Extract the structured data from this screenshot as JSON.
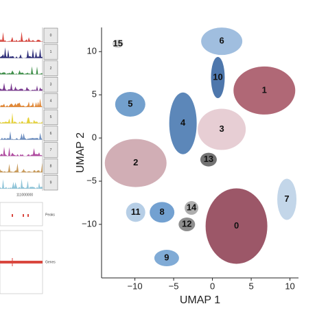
{
  "tracks": {
    "labels": [
      "0",
      "1",
      "2",
      "3",
      "4",
      "5",
      "6",
      "7",
      "8",
      "9"
    ],
    "colors": [
      "#d9473f",
      "#2c2c78",
      "#3f8f4a",
      "#7a3a8f",
      "#e0893a",
      "#e6d23a",
      "#6e8fc0",
      "#b04aa0",
      "#c89a5a",
      "#8fc4d8"
    ],
    "coordinate": "111000000",
    "peaks_label": "Peaks",
    "genes_label": "Genes"
  },
  "chart_data": {
    "type": "scatter",
    "xlabel": "UMAP 1",
    "ylabel": "UMAP 2",
    "xlim": [
      -14.3,
      11.1
    ],
    "ylim": [
      -16.2,
      12.8
    ],
    "xticks": [
      {
        "value": -10,
        "label": "−10"
      },
      {
        "value": -5,
        "label": "−5"
      },
      0,
      5,
      10
    ],
    "yticks": [
      {
        "value": -10,
        "label": "−10"
      },
      {
        "value": -5,
        "label": "−5"
      },
      0,
      5,
      10
    ],
    "series": [
      {
        "name": "0",
        "color": "#8b3a4e",
        "x": [
          3.1
        ],
        "y": [
          -10.2
        ]
      },
      {
        "name": "1",
        "color": "#a24d5e",
        "x": [
          6.7
        ],
        "y": [
          5.5
        ]
      },
      {
        "name": "2",
        "color": "#c9a0a8",
        "x": [
          -9.9
        ],
        "y": [
          -2.9
        ]
      },
      {
        "name": "3",
        "color": "#e3c6cc",
        "x": [
          1.2
        ],
        "y": [
          1.0
        ]
      },
      {
        "name": "4",
        "color": "#3f72ad",
        "x": [
          -3.8
        ],
        "y": [
          1.7
        ]
      },
      {
        "name": "5",
        "color": "#5b8fc4",
        "x": [
          -10.6
        ],
        "y": [
          3.9
        ]
      },
      {
        "name": "6",
        "color": "#8fb3d9",
        "x": [
          1.2
        ],
        "y": [
          11.2
        ]
      },
      {
        "name": "7",
        "color": "#b8cfe5",
        "x": [
          9.6
        ],
        "y": [
          -7.1
        ]
      },
      {
        "name": "8",
        "color": "#5b90c9",
        "x": [
          -6.5
        ],
        "y": [
          -8.6
        ]
      },
      {
        "name": "9",
        "color": "#6a9ccf",
        "x": [
          -5.9
        ],
        "y": [
          -13.9
        ]
      },
      {
        "name": "10",
        "color": "#2f5f9e",
        "x": [
          0.7
        ],
        "y": [
          7.0
        ]
      },
      {
        "name": "11",
        "color": "#a9c6e2",
        "x": [
          -9.9
        ],
        "y": [
          -8.6
        ]
      },
      {
        "name": "12",
        "color": "#7a7a7a",
        "x": [
          -3.3
        ],
        "y": [
          -10.0
        ]
      },
      {
        "name": "13",
        "color": "#5a5a5a",
        "x": [
          -0.5
        ],
        "y": [
          -2.5
        ]
      },
      {
        "name": "14",
        "color": "#a0a0a0",
        "x": [
          -2.7
        ],
        "y": [
          -8.1
        ]
      },
      {
        "name": "15",
        "color": "#cfcfcf",
        "x": [
          -12.2
        ],
        "y": [
          10.9
        ]
      }
    ]
  }
}
